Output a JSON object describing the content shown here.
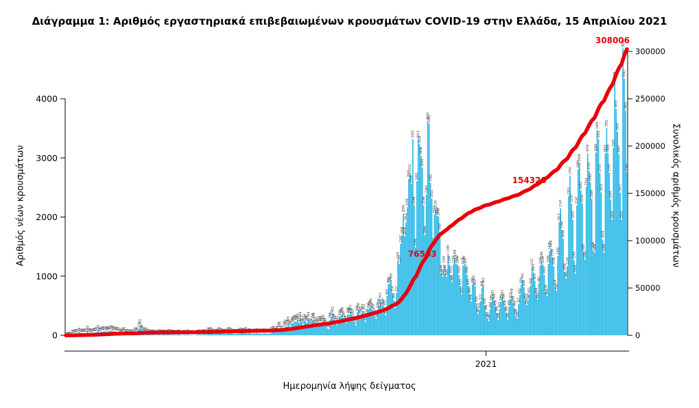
{
  "chart_data": {
    "type": "bar+cumulative-line",
    "title": "Διάγραμμα 1: Αριθμός εργαστηριακά επιβεβαιωμένων κρουσμάτων COVID-19 στην Ελλάδα, 15 Απριλίου 2021",
    "xlabel": "Ημερομηνία λήψης δείγματος",
    "ylabel_left": "Αριθμός νέων κρουσμάτων",
    "ylabel_right": "Συνολικός αριθμός κρουσμάτων",
    "y_left_ticks": [
      0,
      1000,
      2000,
      3000,
      4000
    ],
    "y_right_ticks": [
      0,
      50000,
      100000,
      150000,
      200000,
      250000,
      300000
    ],
    "x_ticks": [
      {
        "label": "2021",
        "day_index": 310
      }
    ],
    "bar_color": "#29b8e6",
    "line_color": "#e8000b",
    "grid": false,
    "legend": "none",
    "daily_new_cases": [
      1,
      3,
      4,
      7,
      7,
      10,
      14,
      22,
      31,
      17,
      48,
      21,
      35,
      26,
      35,
      31,
      82,
      35,
      38,
      21,
      36,
      46,
      45,
      57,
      94,
      48,
      71,
      56,
      69,
      71,
      68,
      60,
      82,
      71,
      95,
      68,
      71,
      60,
      56,
      52,
      25,
      30,
      52,
      56,
      27,
      31,
      22,
      15,
      25,
      16,
      21,
      47,
      56,
      45,
      110,
      161,
      98,
      66,
      41,
      56,
      32,
      27,
      20,
      12,
      16,
      12,
      10,
      6,
      15,
      22,
      10,
      15,
      17,
      14,
      12,
      15,
      19,
      22,
      10,
      14,
      13,
      8,
      10,
      21,
      15,
      9,
      3,
      11,
      12,
      9,
      19,
      10,
      7,
      11,
      3,
      5,
      8,
      10,
      15,
      20,
      11,
      14,
      23,
      12,
      19,
      52,
      47,
      56,
      44,
      20,
      25,
      31,
      28,
      56,
      43,
      39,
      24,
      29,
      20,
      30,
      56,
      52,
      43,
      31,
      22,
      26,
      24,
      31,
      28,
      50,
      41,
      43,
      36,
      60,
      27,
      41,
      33,
      31,
      25,
      35,
      27,
      39,
      31,
      35,
      28,
      24,
      36,
      32,
      30,
      26,
      31,
      27,
      57,
      78,
      65,
      51,
      78,
      110,
      121,
      75,
      77,
      124,
      153,
      151,
      203,
      152,
      126,
      196,
      212,
      235,
      230,
      254,
      207,
      284,
      217,
      168,
      251,
      230,
      209,
      284,
      177,
      168,
      258,
      269,
      177,
      203,
      157,
      209,
      216,
      207,
      241,
      187,
      177,
      117,
      105,
      268,
      312,
      372,
      249,
      214,
      177,
      215,
      310,
      339,
      358,
      286,
      218,
      207,
      358,
      346,
      401,
      344,
      312,
      218,
      170,
      390,
      436,
      342,
      372,
      417,
      411,
      226,
      334,
      441,
      468,
      508,
      436,
      411,
      322,
      280,
      438,
      508,
      611,
      438,
      508,
      482,
      338,
      667,
      865,
      882,
      935,
      714,
      594,
      461,
      717,
      1259,
      1211,
      1547,
      1690,
      2056,
      1678,
      1914,
      2166,
      2646,
      2752,
      2556,
      3316,
      2198,
      1490,
      2605,
      3313,
      3228,
      3038,
      2835,
      2198,
      1698,
      2383,
      3620,
      3581,
      2581,
      2311,
      1498,
      2044,
      2135,
      2018,
      2006,
      1747,
      1044,
      993,
      1194,
      1044,
      993,
      1383,
      1194,
      1022,
      905,
      1199,
      1306,
      1213,
      1194,
      1022,
      835,
      693,
      1176,
      1199,
      1153,
      1026,
      835,
      693,
      576,
      867,
      902,
      831,
      542,
      361,
      435,
      577,
      805,
      862,
      510,
      398,
      282,
      240,
      444,
      566,
      652,
      588,
      478,
      380,
      260,
      445,
      566,
      652,
      588,
      478,
      380,
      266,
      484,
      612,
      678,
      548,
      466,
      330,
      287,
      527,
      682,
      858,
      941,
      816,
      594,
      510,
      589,
      693,
      848,
      1151,
      1061,
      923,
      688,
      605,
      882,
      1181,
      1268,
      1193,
      1021,
      738,
      669,
      1206,
      1428,
      1460,
      1316,
      1168,
      828,
      750,
      1342,
      1913,
      2147,
      1784,
      1630,
      1068,
      965,
      1170,
      2353,
      2702,
      2229,
      1955,
      1269,
      1044,
      2197,
      2809,
      2920,
      2452,
      2232,
      1405,
      1282,
      2514,
      3079,
      2781,
      2591,
      2309,
      1436,
      1400,
      3089,
      3465,
      3313,
      2747,
      2415,
      1620,
      1399,
      3073,
      3502,
      3080,
      2747,
      2297,
      1955,
      3165,
      4309,
      3833,
      3445,
      3067,
      2411,
      1955,
      4851,
      4342,
      3803,
      2760
    ],
    "line_is_running_total_of_bars": true,
    "line_annotations": [
      {
        "label": "76503",
        "day_index": 263
      },
      {
        "label": "154320",
        "day_index": 342
      },
      {
        "label": "308006",
        "day_index": 414
      }
    ]
  }
}
